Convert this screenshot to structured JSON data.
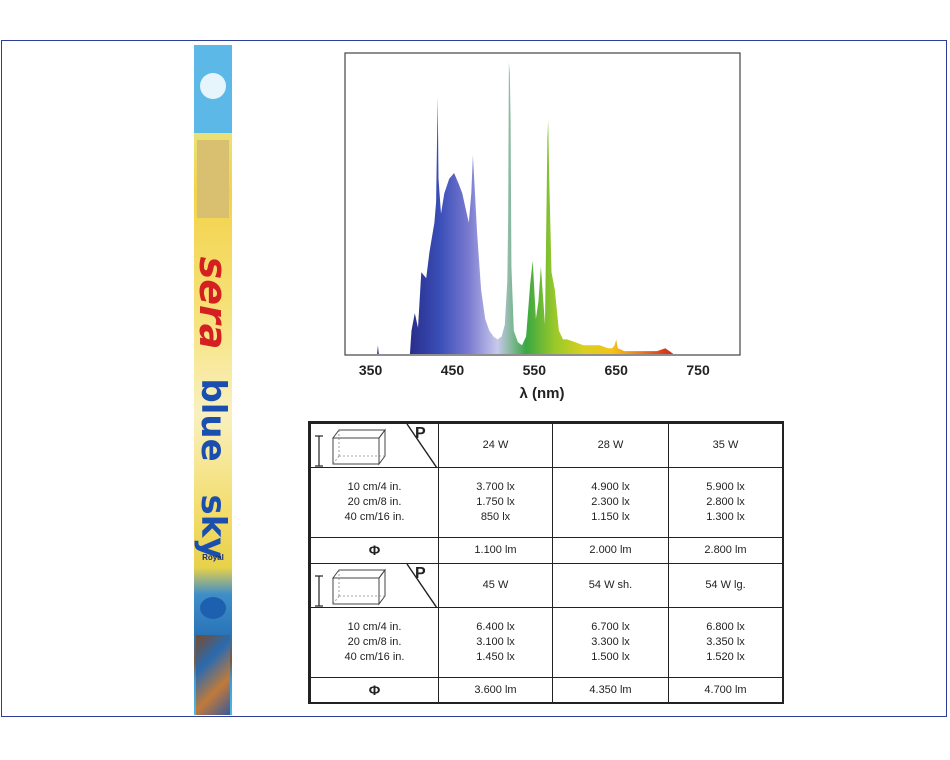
{
  "product": {
    "brand": "sera",
    "line1": "blue",
    "line2": "sky",
    "variant": "Royal"
  },
  "chart_data": {
    "type": "area",
    "xlabel": "λ (nm)",
    "xticks": [
      "350",
      "450",
      "550",
      "650",
      "750"
    ],
    "xlim": [
      320,
      800
    ],
    "ylim": [
      0,
      100
    ],
    "grid": false,
    "points": [
      [
        320,
        0
      ],
      [
        358,
        0
      ],
      [
        359,
        3
      ],
      [
        360,
        0
      ],
      [
        398,
        0
      ],
      [
        400,
        8
      ],
      [
        404,
        14
      ],
      [
        408,
        9
      ],
      [
        412,
        28
      ],
      [
        418,
        26
      ],
      [
        422,
        35
      ],
      [
        428,
        45
      ],
      [
        430,
        52
      ],
      [
        432,
        88
      ],
      [
        433,
        60
      ],
      [
        436,
        48
      ],
      [
        440,
        55
      ],
      [
        446,
        60
      ],
      [
        452,
        62
      ],
      [
        458,
        58
      ],
      [
        462,
        55
      ],
      [
        466,
        50
      ],
      [
        470,
        45
      ],
      [
        473,
        55
      ],
      [
        475,
        68
      ],
      [
        477,
        58
      ],
      [
        480,
        42
      ],
      [
        485,
        22
      ],
      [
        490,
        12
      ],
      [
        495,
        8
      ],
      [
        500,
        6
      ],
      [
        505,
        5
      ],
      [
        510,
        6
      ],
      [
        514,
        10
      ],
      [
        517,
        25
      ],
      [
        518,
        45
      ],
      [
        519,
        100
      ],
      [
        520,
        96
      ],
      [
        521,
        80
      ],
      [
        522,
        30
      ],
      [
        525,
        8
      ],
      [
        530,
        4
      ],
      [
        535,
        3
      ],
      [
        540,
        6
      ],
      [
        545,
        24
      ],
      [
        548,
        32
      ],
      [
        550,
        22
      ],
      [
        552,
        12
      ],
      [
        555,
        18
      ],
      [
        558,
        30
      ],
      [
        560,
        22
      ],
      [
        563,
        10
      ],
      [
        566,
        74
      ],
      [
        567,
        80
      ],
      [
        568,
        62
      ],
      [
        571,
        28
      ],
      [
        575,
        22
      ],
      [
        580,
        8
      ],
      [
        585,
        5
      ],
      [
        590,
        5
      ],
      [
        600,
        4
      ],
      [
        610,
        3
      ],
      [
        620,
        3
      ],
      [
        630,
        3
      ],
      [
        640,
        2
      ],
      [
        645,
        2
      ],
      [
        648,
        3
      ],
      [
        650,
        5
      ],
      [
        652,
        2
      ],
      [
        660,
        1
      ],
      [
        680,
        1
      ],
      [
        700,
        1
      ],
      [
        710,
        2
      ],
      [
        720,
        0
      ],
      [
        800,
        0
      ]
    ],
    "colors": [
      "#2a2f8e",
      "#3a4fb8",
      "#7a7ad0",
      "#c8c8ec",
      "#3aa842",
      "#9ac82a",
      "#d8d020",
      "#f5c21a",
      "#ef7a1a",
      "#d6301a"
    ]
  },
  "table": {
    "rows": [
      {
        "power_label": "P",
        "wattages": [
          "24 W",
          "28 W",
          "35 W"
        ],
        "distances": [
          "10 cm/4 in.",
          "20 cm/8 in.",
          "40 cm/16 in."
        ],
        "lux": [
          [
            "3.700 lx",
            "1.750 lx",
            "850 lx"
          ],
          [
            "4.900 lx",
            "2.300 lx",
            "1.150 lx"
          ],
          [
            "5.900 lx",
            "2.800 lx",
            "1.300 lx"
          ]
        ],
        "flux_symbol": "Φ",
        "flux": [
          "1.100 lm",
          "2.000 lm",
          "2.800 lm"
        ]
      },
      {
        "power_label": "P",
        "wattages": [
          "45 W",
          "54 W sh.",
          "54 W lg."
        ],
        "distances": [
          "10 cm/4 in.",
          "20 cm/8 in.",
          "40 cm/16 in."
        ],
        "lux": [
          [
            "6.400 lx",
            "3.100 lx",
            "1.450 lx"
          ],
          [
            "6.700 lx",
            "3.300 lx",
            "1.500 lx"
          ],
          [
            "6.800 lx",
            "3.350 lx",
            "1.520 lx"
          ]
        ],
        "flux_symbol": "Φ",
        "flux": [
          "3.600 lm",
          "4.350 lm",
          "4.700 lm"
        ]
      }
    ]
  }
}
